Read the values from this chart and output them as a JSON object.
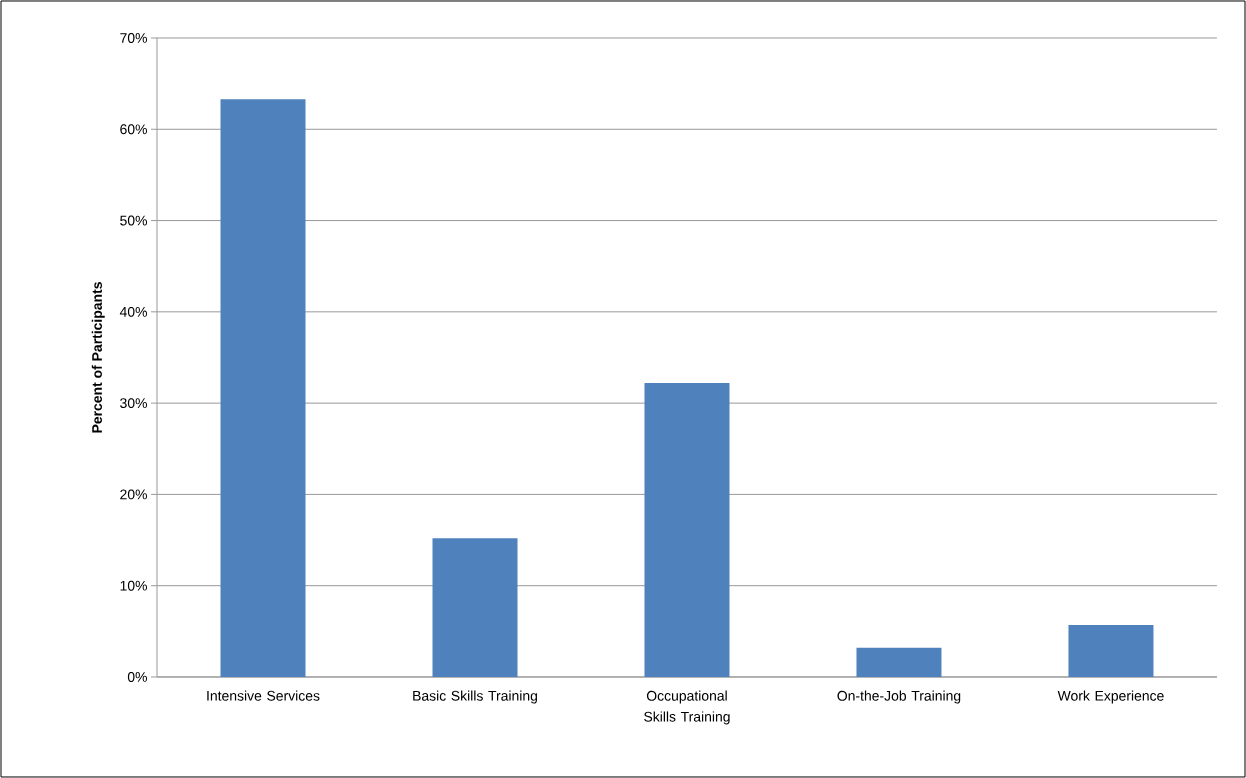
{
  "chart_data": {
    "type": "bar",
    "ylabel": "Percent of Participants",
    "categories": [
      "Intensive Services",
      "Basic Skills Training",
      "Occupational Skills Training",
      "On-the-Job Training",
      "Work Experience"
    ],
    "values": [
      63.3,
      15.2,
      32.2,
      3.2,
      5.7
    ],
    "color": "#4f81bd",
    "ylim": [
      0,
      70
    ],
    "yticks": [
      {
        "value": 0,
        "label": "0%"
      },
      {
        "value": 10,
        "label": "10%"
      },
      {
        "value": 20,
        "label": "20%"
      },
      {
        "value": 30,
        "label": "30%"
      },
      {
        "value": 40,
        "label": "40%"
      },
      {
        "value": 50,
        "label": "50%"
      },
      {
        "value": 60,
        "label": "60%"
      },
      {
        "value": 70,
        "label": "70%"
      }
    ],
    "grid": "y"
  }
}
